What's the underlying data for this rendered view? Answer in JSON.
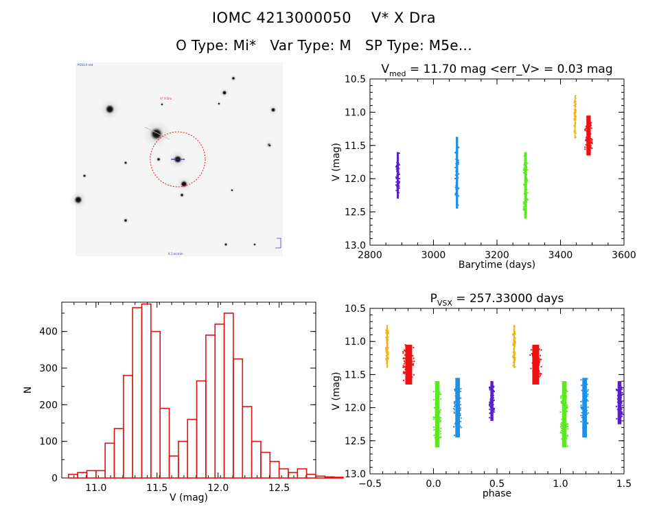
{
  "header": {
    "title": "IOMC 4213000050    V* X Dra",
    "subtitle": "O Type: Mi*   Var Type: M   SP Type: M5e..."
  },
  "finder": {
    "labels": [
      "POSS-II red",
      "V* X Dra",
      "4.1 arcmin"
    ]
  },
  "chart_data": [
    {
      "type": "scatter",
      "id": "light_curve",
      "title": "",
      "title_parts": {
        "prefix": "V",
        "sub": "med",
        "suffix": " = 11.70 mag <err_V> = 0.03 mag"
      },
      "xlabel": "Barytime (days)",
      "ylabel": "V (mag)",
      "xlim": [
        2800,
        3600
      ],
      "ylim": [
        13.0,
        10.5
      ],
      "xticks": [
        2800,
        3000,
        3200,
        3400,
        3600
      ],
      "yticks": [
        10.5,
        11.0,
        11.5,
        12.0,
        12.5,
        13.0
      ],
      "ytick_labels": [
        "10.5",
        "11.0",
        "11.5",
        "12.0",
        "12.5",
        "13.0"
      ],
      "series": [
        {
          "color": "#5b1fc9",
          "x": [
            2882,
            2893
          ],
          "y": [
            11.6,
            12.3
          ]
        },
        {
          "color": "#1f8fe8",
          "x": [
            3068,
            3080
          ],
          "y": [
            11.37,
            12.45
          ]
        },
        {
          "color": "#5ce81f",
          "x": [
            3283,
            3297
          ],
          "y": [
            11.6,
            12.6
          ]
        },
        {
          "color": "#f2b418",
          "x": [
            3443,
            3449
          ],
          "y": [
            10.75,
            11.4
          ]
        },
        {
          "color": "#ee1111",
          "x": [
            3477,
            3500
          ],
          "y": [
            11.05,
            11.65
          ]
        }
      ]
    },
    {
      "type": "bar",
      "id": "histogram",
      "title": "",
      "xlabel": "V (mag)",
      "ylabel": "N",
      "xlim": [
        10.72,
        12.8
      ],
      "ylim": [
        0,
        480
      ],
      "xticks": [
        11.0,
        11.5,
        12.0,
        12.5
      ],
      "xtick_labels": [
        "11.0",
        "11.5",
        "12.0",
        "12.5"
      ],
      "yticks": [
        0,
        100,
        200,
        300,
        400
      ],
      "bin_start": 10.775,
      "bin_width": 0.075,
      "values": [
        10,
        15,
        20,
        20,
        95,
        135,
        280,
        465,
        475,
        400,
        190,
        60,
        100,
        160,
        265,
        390,
        420,
        450,
        325,
        195,
        100,
        70,
        45,
        25,
        15,
        25,
        10,
        5,
        3,
        2
      ]
    },
    {
      "type": "scatter",
      "id": "phased_curve",
      "title": "",
      "title_parts": {
        "prefix": "P",
        "sub": "VSX",
        "suffix": " = 257.33000 days"
      },
      "xlabel": "phase",
      "ylabel": "V (mag)",
      "xlim": [
        -0.5,
        1.5
      ],
      "ylim": [
        13.0,
        10.5
      ],
      "xticks": [
        -0.5,
        0.0,
        0.5,
        1.0,
        1.5
      ],
      "xtick_labels": [
        "−0.5",
        "0.0",
        "0.5",
        "1.0",
        "1.5"
      ],
      "yticks": [
        10.5,
        11.0,
        11.5,
        12.0,
        12.5,
        13.0
      ],
      "ytick_labels": [
        "10.5",
        "11.0",
        "11.5",
        "12.0",
        "12.5",
        "13.0"
      ],
      "period_days": 257.33,
      "series": [
        {
          "color": "#f2b418",
          "x": [
            -0.375,
            -0.355
          ],
          "y": [
            10.75,
            11.4
          ]
        },
        {
          "color": "#ee1111",
          "x": [
            -0.24,
            -0.15
          ],
          "y": [
            11.05,
            11.65
          ]
        },
        {
          "color": "#5ce81f",
          "x": [
            0.0,
            0.06
          ],
          "y": [
            11.6,
            12.6
          ]
        },
        {
          "color": "#1f8fe8",
          "x": [
            0.16,
            0.22
          ],
          "y": [
            11.55,
            12.45
          ]
        },
        {
          "color": "#5b1fc9",
          "x": [
            0.44,
            0.48
          ],
          "y": [
            11.6,
            12.2
          ]
        },
        {
          "color": "#f2b418",
          "x": [
            0.625,
            0.645
          ],
          "y": [
            10.75,
            11.4
          ]
        },
        {
          "color": "#ee1111",
          "x": [
            0.76,
            0.85
          ],
          "y": [
            11.05,
            11.65
          ]
        },
        {
          "color": "#5ce81f",
          "x": [
            1.0,
            1.06
          ],
          "y": [
            11.6,
            12.6
          ]
        },
        {
          "color": "#1f8fe8",
          "x": [
            1.16,
            1.22
          ],
          "y": [
            11.55,
            12.45
          ]
        },
        {
          "color": "#5b1fc9",
          "x": [
            1.44,
            1.49
          ],
          "y": [
            11.6,
            12.25
          ]
        }
      ]
    }
  ]
}
